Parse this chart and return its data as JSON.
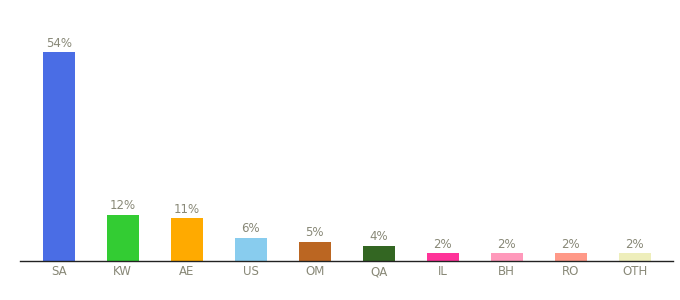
{
  "categories": [
    "SA",
    "KW",
    "AE",
    "US",
    "OM",
    "QA",
    "IL",
    "BH",
    "RO",
    "OTH"
  ],
  "values": [
    54,
    12,
    11,
    6,
    5,
    4,
    2,
    2,
    2,
    2
  ],
  "labels": [
    "54%",
    "12%",
    "11%",
    "6%",
    "5%",
    "4%",
    "2%",
    "2%",
    "2%",
    "2%"
  ],
  "bar_colors": [
    "#4a6de5",
    "#33cc33",
    "#ffaa00",
    "#88ccee",
    "#bb6622",
    "#336622",
    "#ff3399",
    "#ff99bb",
    "#ff9988",
    "#eeeebb"
  ],
  "background_color": "#ffffff",
  "ylim": [
    0,
    62
  ],
  "label_fontsize": 8.5,
  "tick_fontsize": 8.5,
  "label_color": "#888877",
  "tick_color": "#888877",
  "bar_width": 0.5
}
